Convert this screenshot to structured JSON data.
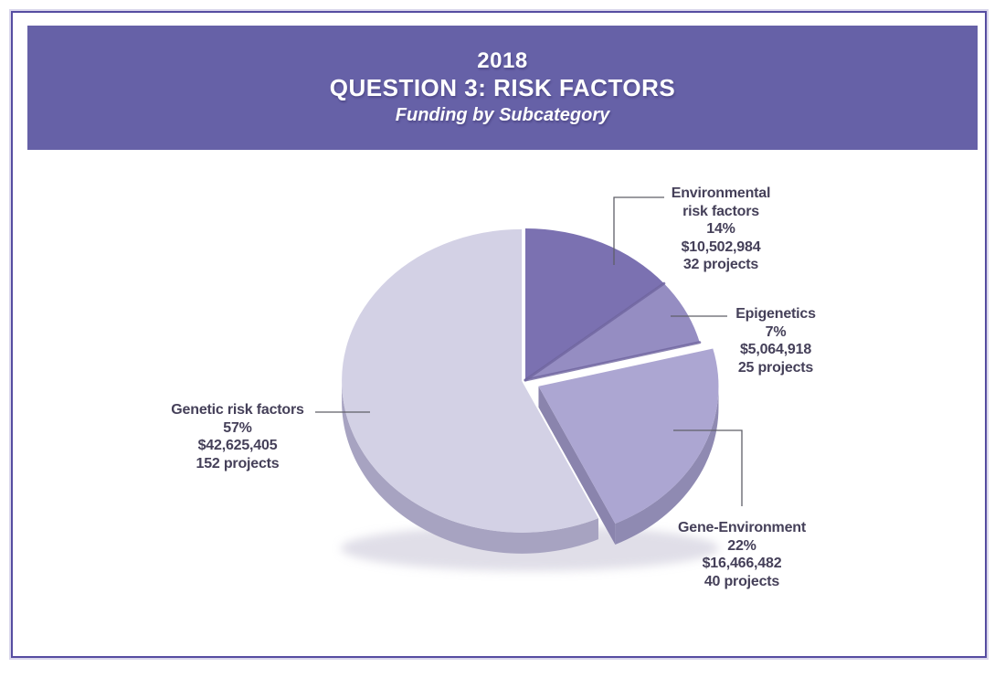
{
  "header": {
    "year": "2018",
    "title": "QUESTION 3: RISK FACTORS",
    "subtitle": "Funding by Subcategory",
    "bg_color": "#6661a7",
    "text_color": "#ffffff"
  },
  "page": {
    "border_color": "#564da1",
    "background": "#ffffff"
  },
  "chart_data": {
    "type": "pie",
    "style": "3d-exploded-pie",
    "title": "2018 QUESTION 3: RISK FACTORS",
    "subtitle": "Funding by Subcategory",
    "start_angle_deg": 0,
    "direction": "clockwise",
    "legend_position": "none",
    "label_style": "outside labels with leader lines",
    "leader_color": "#5f5f68",
    "label_text_color": "#454059",
    "slices": [
      {
        "label": "Environmental risk factors",
        "label_lines": [
          "Environmental",
          "risk factors"
        ],
        "percent": 14,
        "percent_label": "14%",
        "funding": "$10,502,984",
        "projects": "32 projects",
        "color": "#7b71b1",
        "side_color": "#6a5f9c",
        "exploded": false
      },
      {
        "label": "Epigenetics",
        "label_lines": [
          "Epigenetics"
        ],
        "percent": 7,
        "percent_label": "7%",
        "funding": "$5,064,918",
        "projects": "25 projects",
        "color": "#958dc2",
        "side_color": "#7d74a9",
        "exploded": false
      },
      {
        "label": "Gene-Environment",
        "label_lines": [
          "Gene-Environment"
        ],
        "percent": 22,
        "percent_label": "22%",
        "funding": "$16,466,482",
        "projects": "40 projects",
        "color": "#aca6d2",
        "side_color": "#8f8ab2",
        "cut_color": "#8a84ad",
        "exploded": true
      },
      {
        "label": "Genetic risk factors",
        "label_lines": [
          "Genetic risk factors"
        ],
        "percent": 57,
        "percent_label": "57%",
        "funding": "$42,625,405",
        "projects": "152 projects",
        "color": "#d3d1e5",
        "side_color": "#a7a3c1",
        "exploded": false
      }
    ],
    "bevel_line_color": "#6f659f"
  }
}
